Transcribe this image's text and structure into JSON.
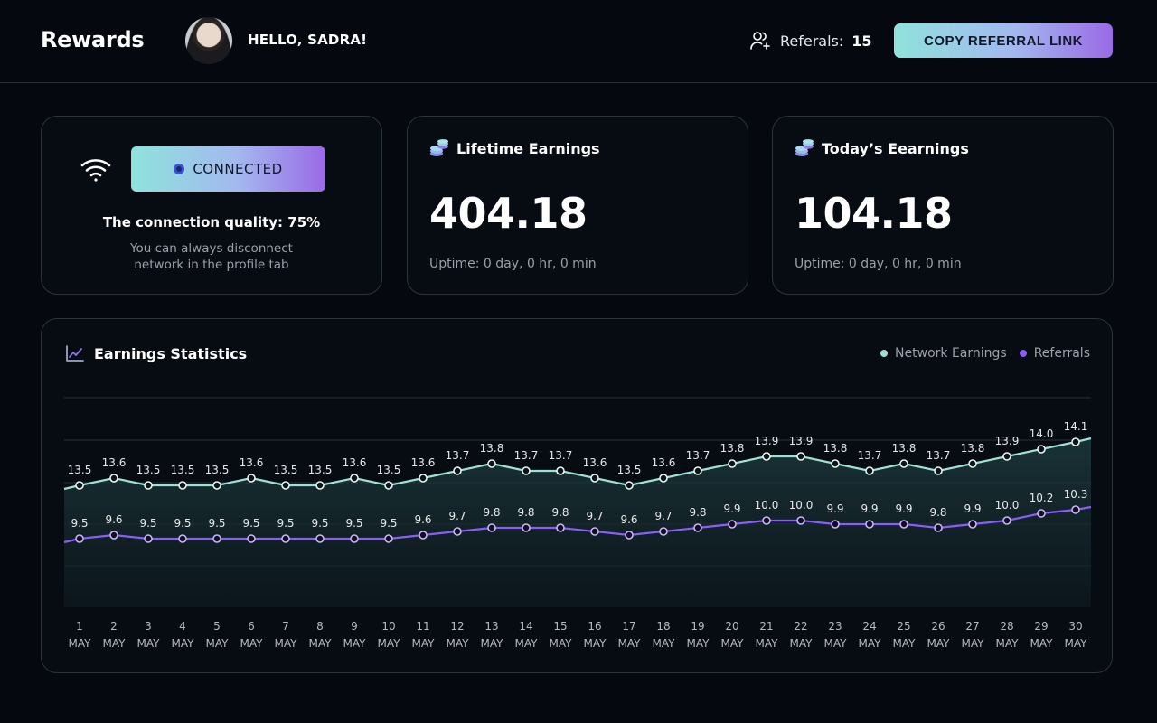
{
  "header": {
    "title": "Rewards",
    "greeting": "HELLO, SADRA!",
    "referrals_label": "Referals:",
    "referrals_count": "15",
    "copy_button": "COPY REFERRAL  LINK"
  },
  "connection": {
    "button_label": "CONNECTED",
    "quality": "The connection quality: 75%",
    "hint_line1": "You can always disconnect",
    "hint_line2": "network in the profile tab"
  },
  "lifetime": {
    "title": "Lifetime Earnings",
    "value": "404.18",
    "uptime": "Uptime: 0 day, 0 hr, 0 min"
  },
  "today": {
    "title": "Today’s Eearnings",
    "value": "104.18",
    "uptime": "Uptime: 0 day, 0 hr, 0 min"
  },
  "stats": {
    "title": "Earnings Statistics",
    "legend": [
      "Network Earnings",
      "Referrals"
    ]
  },
  "colors": {
    "accent_teal": "#8fe3dc",
    "accent_purple": "#9a6ae6",
    "network_line": "#9fe0d5",
    "referral_line": "#8b5cf6"
  },
  "chart_data": {
    "type": "line",
    "categories": [
      "1",
      "2",
      "3",
      "4",
      "5",
      "6",
      "7",
      "8",
      "9",
      "10",
      "11",
      "12",
      "13",
      "14",
      "15",
      "16",
      "17",
      "18",
      "19",
      "20",
      "21",
      "22",
      "23",
      "24",
      "25",
      "26",
      "27",
      "28",
      "29",
      "30"
    ],
    "category_sublabel": "MAY",
    "series": [
      {
        "name": "Network Earnings",
        "values": [
          13.5,
          13.6,
          13.5,
          13.5,
          13.5,
          13.6,
          13.5,
          13.5,
          13.6,
          13.5,
          13.6,
          13.7,
          13.8,
          13.7,
          13.7,
          13.6,
          13.5,
          13.6,
          13.7,
          13.8,
          13.9,
          13.9,
          13.8,
          13.7,
          13.8,
          13.7,
          13.8,
          13.9,
          14.0,
          14.1
        ]
      },
      {
        "name": "Referrals",
        "values": [
          9.5,
          9.6,
          9.5,
          9.5,
          9.5,
          9.5,
          9.5,
          9.5,
          9.5,
          9.5,
          9.6,
          9.7,
          9.8,
          9.8,
          9.8,
          9.7,
          9.6,
          9.7,
          9.8,
          9.9,
          10.0,
          10.0,
          9.9,
          9.9,
          9.9,
          9.8,
          9.9,
          10.0,
          10.2,
          10.3
        ]
      }
    ],
    "grid": true,
    "legend_position": "top-right"
  }
}
